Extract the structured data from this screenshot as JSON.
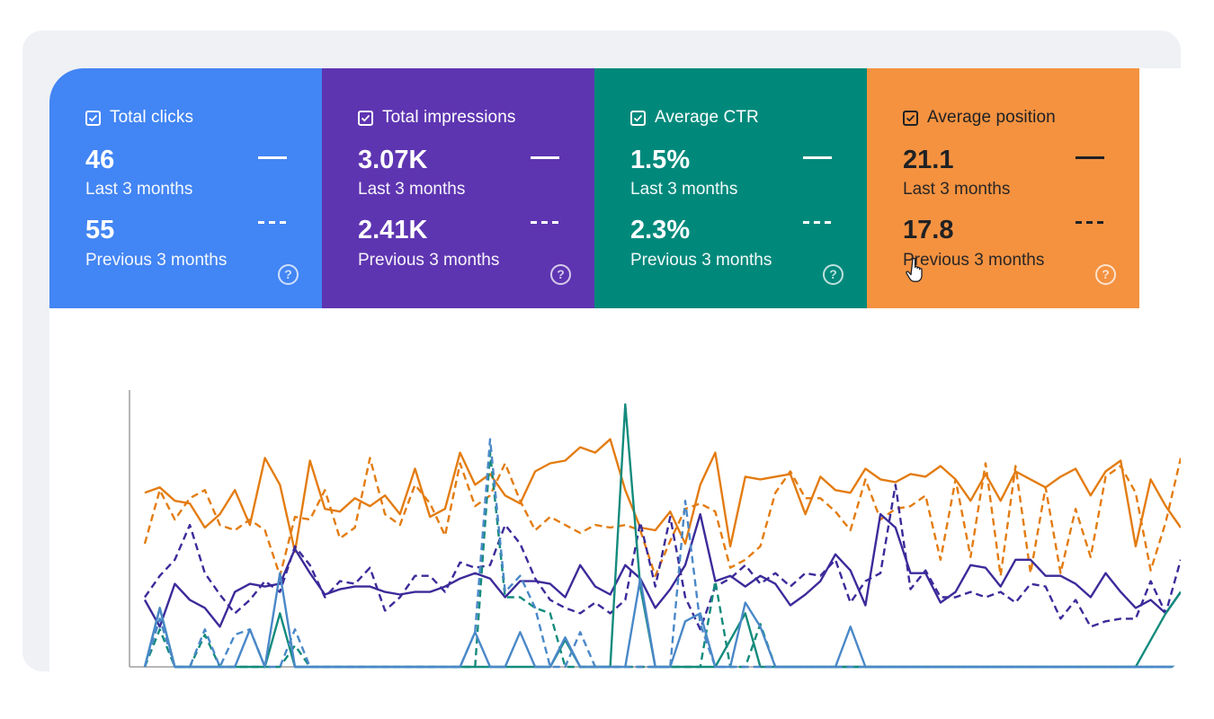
{
  "cards": [
    {
      "label": "Total clicks",
      "current_value": "46",
      "current_period": "Last 3 months",
      "previous_value": "55",
      "previous_period": "Previous 3 months",
      "help": "?",
      "color": "#4285f4",
      "checked": true
    },
    {
      "label": "Total impressions",
      "current_value": "3.07K",
      "current_period": "Last 3 months",
      "previous_value": "2.41K",
      "previous_period": "Previous 3 months",
      "help": "?",
      "color": "#5e35b1",
      "checked": true
    },
    {
      "label": "Average CTR",
      "current_value": "1.5%",
      "current_period": "Last 3 months",
      "previous_value": "2.3%",
      "previous_period": "Previous 3 months",
      "help": "?",
      "color": "#00897b",
      "checked": true
    },
    {
      "label": "Average position",
      "current_value": "21.1",
      "current_period": "Last 3 months",
      "previous_value": "17.8",
      "previous_period": "Previous 3 months",
      "help": "?",
      "color": "#f49240",
      "checked": true
    }
  ],
  "icons": [
    "checkbox-checked-icon",
    "help-circle-icon",
    "hand-pointer-icon"
  ],
  "chart_data": {
    "type": "line",
    "title": "",
    "xlabel": "",
    "ylabel": "",
    "grid": false,
    "x": [
      1,
      2,
      3,
      4,
      5,
      6,
      7,
      8,
      9,
      10,
      11,
      12,
      13,
      14,
      15,
      16,
      17,
      18,
      19,
      20,
      21,
      22,
      23,
      24,
      25,
      26,
      27,
      28,
      29,
      30,
      31,
      32,
      33,
      34,
      35,
      36,
      37,
      38,
      39,
      40,
      41,
      42,
      43,
      44,
      45,
      46,
      47,
      48,
      49,
      50,
      51,
      52,
      53,
      54,
      55,
      56,
      57,
      58,
      59,
      60,
      61,
      62,
      63,
      64,
      65,
      66,
      67,
      68,
      69,
      70
    ],
    "ylim": [
      0,
      100
    ],
    "series": [
      {
        "color": "#e37c11",
        "dashed": false,
        "values": [
          65,
          67,
          62,
          61,
          52,
          57,
          66,
          53,
          78,
          68,
          43,
          77,
          59,
          58,
          63,
          60,
          64,
          57,
          74,
          56,
          59,
          80,
          68,
          72,
          64,
          61,
          73,
          76,
          77,
          82,
          80,
          85,
          66,
          52,
          51,
          58,
          46,
          68,
          80,
          45,
          71,
          70,
          71,
          72,
          57,
          71,
          66,
          65,
          74,
          70,
          69,
          72,
          71,
          75,
          70,
          62,
          72,
          62,
          73,
          70,
          67,
          71,
          74,
          64,
          73,
          77,
          45,
          70,
          60,
          52
        ]
      },
      {
        "color": "#e37c11",
        "dashed": true,
        "values": [
          46,
          66,
          55,
          63,
          66,
          53,
          51,
          55,
          51,
          34,
          56,
          55,
          66,
          48,
          52,
          78,
          57,
          53,
          68,
          61,
          49,
          76,
          60,
          64,
          76,
          62,
          51,
          56,
          53,
          50,
          53,
          52,
          53,
          51,
          34,
          47,
          59,
          61,
          58,
          37,
          40,
          45,
          65,
          73,
          63,
          63,
          58,
          51,
          70,
          55,
          59,
          60,
          64,
          40,
          70,
          41,
          76,
          34,
          75,
          35,
          67,
          35,
          59,
          41,
          71,
          75,
          65,
          36,
          54,
          78
        ]
      },
      {
        "color": "#3b2b9a",
        "dashed": false,
        "values": [
          25,
          15,
          31,
          25,
          22,
          15,
          28,
          31,
          30,
          31,
          44,
          35,
          27,
          29,
          30,
          30,
          28,
          27,
          28,
          28,
          30,
          33,
          35,
          33,
          26,
          32,
          32,
          31,
          26,
          38,
          30,
          27,
          38,
          33,
          22,
          29,
          38,
          57,
          32,
          34,
          30,
          34,
          31,
          23,
          27,
          32,
          42,
          36,
          23,
          57,
          52,
          35,
          35,
          24,
          28,
          38,
          37,
          30,
          40,
          40,
          34,
          34,
          31,
          26,
          35,
          28,
          22,
          25,
          20,
          28
        ]
      },
      {
        "color": "#3b2b9a",
        "dashed": true,
        "values": [
          26,
          34,
          40,
          53,
          35,
          27,
          20,
          25,
          32,
          28,
          45,
          38,
          26,
          32,
          31,
          37,
          21,
          26,
          34,
          34,
          28,
          39,
          37,
          38,
          53,
          46,
          33,
          25,
          22,
          20,
          24,
          20,
          25,
          54,
          30,
          56,
          26,
          14,
          30,
          33,
          38,
          31,
          35,
          30,
          35,
          34,
          40,
          24,
          32,
          35,
          68,
          29,
          36,
          26,
          26,
          28,
          26,
          28,
          24,
          31,
          30,
          18,
          25,
          15,
          17,
          18,
          18,
          32,
          20,
          40
        ]
      },
      {
        "color": "#138b7d",
        "dashed": false,
        "values": [
          0,
          22,
          0,
          0,
          0,
          0,
          0,
          0,
          0,
          20,
          0,
          0,
          0,
          0,
          0,
          0,
          0,
          0,
          0,
          0,
          0,
          0,
          0,
          0,
          0,
          0,
          0,
          0,
          10,
          0,
          0,
          0,
          98,
          30,
          0,
          0,
          0,
          0,
          0,
          10,
          20,
          0,
          0,
          0,
          0,
          0,
          0,
          0,
          0,
          0,
          0,
          0,
          0,
          0,
          0,
          0,
          0,
          0,
          0,
          0,
          0,
          0,
          0,
          0,
          0,
          0,
          0,
          10,
          20,
          28
        ]
      },
      {
        "color": "#138b7d",
        "dashed": true,
        "values": [
          0,
          14,
          0,
          0,
          12,
          0,
          0,
          0,
          0,
          0,
          8,
          0,
          0,
          0,
          0,
          0,
          0,
          0,
          0,
          0,
          0,
          0,
          0,
          80,
          26,
          26,
          22,
          20,
          0,
          0,
          0,
          0,
          0,
          0,
          0,
          0,
          0,
          0,
          32,
          0,
          0,
          16,
          0,
          0,
          0,
          0,
          0,
          0,
          0,
          0,
          0,
          0,
          0,
          0,
          0,
          0,
          0,
          0,
          0,
          0,
          0,
          0,
          0,
          0,
          0,
          0,
          0,
          0,
          0,
          0
        ]
      },
      {
        "color": "#4a88c8",
        "dashed": false,
        "values": [
          0,
          22,
          0,
          0,
          0,
          0,
          0,
          14,
          0,
          35,
          0,
          0,
          0,
          0,
          0,
          0,
          0,
          0,
          0,
          0,
          0,
          0,
          13,
          0,
          0,
          13,
          0,
          0,
          11,
          0,
          0,
          0,
          0,
          33,
          0,
          0,
          17,
          20,
          0,
          0,
          24,
          15,
          0,
          0,
          0,
          0,
          0,
          15,
          0,
          0,
          0,
          0,
          0,
          0,
          0,
          0,
          0,
          0,
          0,
          0,
          0,
          0,
          0,
          0,
          0,
          0,
          0,
          0,
          0,
          0
        ]
      },
      {
        "color": "#4a88c8",
        "dashed": true,
        "values": [
          0,
          18,
          0,
          0,
          14,
          0,
          12,
          14,
          0,
          0,
          14,
          0,
          0,
          0,
          0,
          0,
          0,
          0,
          0,
          0,
          0,
          0,
          13,
          85,
          28,
          34,
          22,
          0,
          0,
          13,
          0,
          0,
          0,
          0,
          0,
          0,
          62,
          16,
          0,
          0,
          0,
          0,
          0,
          0,
          0,
          0,
          0,
          0,
          0,
          0,
          0,
          0,
          0,
          0,
          0,
          0,
          0,
          0,
          0,
          0,
          0,
          0,
          0,
          0,
          0,
          0,
          0,
          0,
          0,
          0
        ]
      }
    ]
  }
}
